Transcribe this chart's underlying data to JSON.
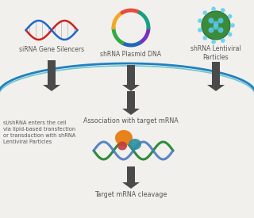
{
  "bg_color": "#f2f0ec",
  "label_sirna": "siRNA Gene Silencers",
  "label_shrna_plasmid": "shRNA Plasmid DNA",
  "label_shrna_lenti": "shRNA Lentiviral\nParticles",
  "label_association": "Association with target mRNA",
  "label_cleavage": "Target mRNA cleavage",
  "label_entry": "si/shRNA enters the cell\nvia lipid-based transfection\nor transduction with shRNA\nLentiviral Particles",
  "arrow_color": "#4a4a4a",
  "arc_color_outer": "#2080c0",
  "arc_color_inner": "#40b8c8",
  "dna_green": "#2e8b3a",
  "dna_blue": "#4a7abf",
  "risc_orange": "#e8821a",
  "risc_teal": "#2a8fa0",
  "risc_red": "#c43a3a",
  "text_color": "#555555",
  "font_size_labels": 5.5,
  "font_size_entry": 4.8,
  "font_size_center": 5.8
}
